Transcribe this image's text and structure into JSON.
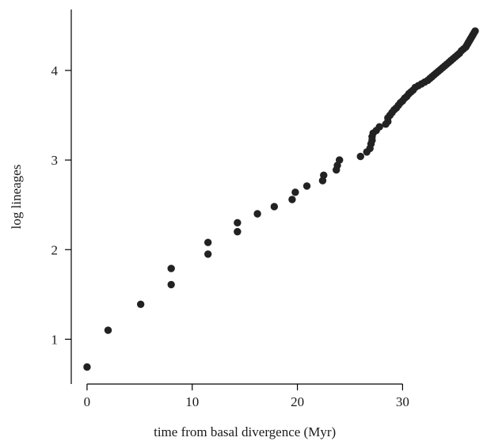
{
  "chart_data": {
    "type": "scatter",
    "title": "",
    "xlabel": "time from basal divergence (Myr)",
    "ylabel": "log lineages",
    "xlim": [
      -1.5,
      37.5
    ],
    "ylim": [
      0.5,
      4.68
    ],
    "xticks": [
      0,
      10,
      20,
      30
    ],
    "yticks": [
      1,
      2,
      3,
      4
    ],
    "xtick_labels": [
      "0",
      "10",
      "20",
      "30"
    ],
    "ytick_labels": [
      "1",
      "2",
      "3",
      "4"
    ],
    "grid": false,
    "legend": "none",
    "point_color": "#222222",
    "series": [
      {
        "points": [
          [
            0,
            0.69
          ],
          [
            2.0,
            1.1
          ],
          [
            5.1,
            1.39
          ],
          [
            8.0,
            1.61
          ],
          [
            8.0,
            1.79
          ],
          [
            11.5,
            1.95
          ],
          [
            11.5,
            2.08
          ],
          [
            14.3,
            2.2
          ],
          [
            14.3,
            2.3
          ],
          [
            16.2,
            2.4
          ],
          [
            17.8,
            2.48
          ],
          [
            19.5,
            2.56
          ],
          [
            19.8,
            2.64
          ],
          [
            20.9,
            2.71
          ],
          [
            22.4,
            2.77
          ],
          [
            22.5,
            2.83
          ],
          [
            23.7,
            2.89
          ],
          [
            23.8,
            2.94
          ],
          [
            24.0,
            3.0
          ],
          [
            26.0,
            3.04
          ],
          [
            26.6,
            3.09
          ],
          [
            26.9,
            3.13
          ],
          [
            27.0,
            3.18
          ],
          [
            27.1,
            3.22
          ],
          [
            27.1,
            3.26
          ],
          [
            27.2,
            3.3
          ],
          [
            27.5,
            3.33
          ],
          [
            27.8,
            3.37
          ],
          [
            28.4,
            3.4
          ],
          [
            28.6,
            3.43
          ],
          [
            28.6,
            3.47
          ],
          [
            28.8,
            3.5
          ],
          [
            29.0,
            3.53
          ],
          [
            29.2,
            3.56
          ],
          [
            29.4,
            3.58
          ],
          [
            29.6,
            3.61
          ],
          [
            29.8,
            3.64
          ],
          [
            30.0,
            3.66
          ],
          [
            30.2,
            3.69
          ],
          [
            30.4,
            3.71
          ],
          [
            30.6,
            3.74
          ],
          [
            30.8,
            3.76
          ],
          [
            31.0,
            3.78
          ],
          [
            31.2,
            3.81
          ],
          [
            31.5,
            3.83
          ],
          [
            31.8,
            3.85
          ],
          [
            32.1,
            3.87
          ],
          [
            32.4,
            3.89
          ],
          [
            32.6,
            3.91
          ],
          [
            32.8,
            3.93
          ],
          [
            33.0,
            3.95
          ],
          [
            33.2,
            3.97
          ],
          [
            33.4,
            3.99
          ],
          [
            33.6,
            4.01
          ],
          [
            33.8,
            4.03
          ],
          [
            34.0,
            4.05
          ],
          [
            34.2,
            4.07
          ],
          [
            34.4,
            4.09
          ],
          [
            34.6,
            4.11
          ],
          [
            34.8,
            4.13
          ],
          [
            35.0,
            4.15
          ],
          [
            35.2,
            4.17
          ],
          [
            35.4,
            4.19
          ],
          [
            35.6,
            4.22
          ],
          [
            35.8,
            4.24
          ],
          [
            36.0,
            4.26
          ],
          [
            36.1,
            4.28
          ],
          [
            36.2,
            4.3
          ],
          [
            36.3,
            4.32
          ],
          [
            36.4,
            4.34
          ],
          [
            36.5,
            4.36
          ],
          [
            36.6,
            4.38
          ],
          [
            36.7,
            4.4
          ],
          [
            36.8,
            4.42
          ],
          [
            36.9,
            4.44
          ]
        ]
      }
    ]
  }
}
